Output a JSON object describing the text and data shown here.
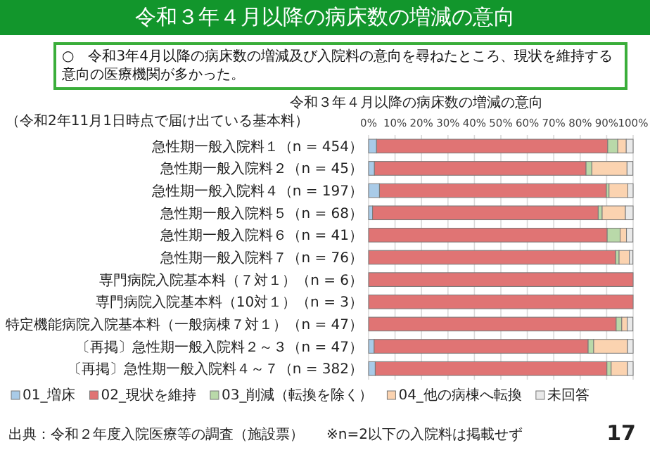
{
  "chart_data": {
    "type": "bar",
    "orientation": "horizontal",
    "stacked": true,
    "title": "令和３年４月以降の病床数の増減の意向",
    "subtitle": "○　令和3年4月以降の病床数の増減及び入院料の意向を尋ねたところ、現状を維持する意向の医療機関が多かった。",
    "ylabel": "（令和2年11月1日時点で届け出ている基本料）",
    "annotations": [
      "令和３年４月以降の病床数の増減の意向",
      "出典：令和２年度入院医療等の調査（施設票）",
      "※n=2以下の入院料は掲載せず",
      "17"
    ],
    "categories": [
      "急性期一般入院料１（n = 454）",
      "急性期一般入院料２（n = 45）",
      "急性期一般入院料４（n = 197）",
      "急性期一般入院料５（n = 68）",
      "急性期一般入院料６（n = 41）",
      "急性期一般入院料７（n = 76）",
      "専門病院入院基本料（７対１）（n = 6）",
      "専門病院入院基本料（10対１）（n = 3）",
      "特定機能病院入院基本料（一般病棟７対１）（n = 47）",
      "〔再掲〕急性期一般入院料２～３（n = 47）",
      "〔再掲〕急性期一般入院料４～７（n = 382）"
    ],
    "series": [
      {
        "name": "01_増床",
        "color": "#a9cbe8",
        "values": [
          3.0,
          2.2,
          4.1,
          1.5,
          0,
          0,
          0,
          0,
          0,
          2.1,
          2.5
        ]
      },
      {
        "name": "02_現状を維持",
        "color": "#e07474",
        "values": [
          87.4,
          80.0,
          85.8,
          85.3,
          90.2,
          93.4,
          100,
          100,
          93.6,
          80.9,
          87.6
        ]
      },
      {
        "name": "03_削減（転換を除く）",
        "color": "#b9d9a9",
        "values": [
          3.8,
          2.2,
          1.0,
          1.5,
          4.9,
          1.3,
          0,
          0,
          2.1,
          2.1,
          1.6
        ]
      },
      {
        "name": "04_他の病棟へ転換",
        "color": "#fbd3b0",
        "values": [
          3.2,
          13.3,
          7.1,
          8.8,
          2.4,
          3.9,
          0,
          0,
          2.1,
          12.8,
          6.2
        ]
      },
      {
        "name": "未回答",
        "color": "#e9e9e9",
        "values": [
          2.6,
          2.2,
          2.0,
          2.9,
          2.4,
          1.3,
          0,
          0,
          2.1,
          2.1,
          2.1
        ]
      }
    ],
    "xlim": [
      0,
      100
    ],
    "xticks": [
      {
        "value": 0,
        "label": "0%"
      },
      {
        "value": 10,
        "label": "10%"
      },
      {
        "value": 20,
        "label": "20%"
      },
      {
        "value": 30,
        "label": "30%"
      },
      {
        "value": 40,
        "label": "40%"
      },
      {
        "value": 50,
        "label": "50%"
      },
      {
        "value": 60,
        "label": "60%"
      },
      {
        "value": 70,
        "label": "70%"
      },
      {
        "value": 80,
        "label": "80%"
      },
      {
        "value": 90,
        "label": "90%"
      },
      {
        "value": 100,
        "label": "100%"
      }
    ],
    "grid": "x",
    "legend": "bottom"
  }
}
